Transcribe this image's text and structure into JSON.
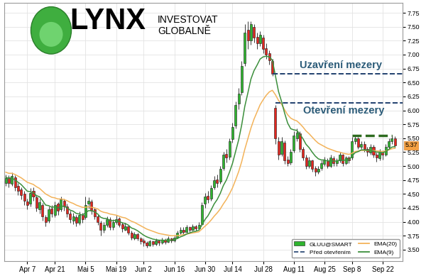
{
  "chart_data": {
    "type": "candlestick",
    "categories": [
      null,
      null,
      null,
      null,
      null,
      null,
      null,
      "Apr 7",
      null,
      null,
      null,
      null,
      null,
      null,
      null,
      null,
      "Apr 21",
      null,
      null,
      null,
      null,
      null,
      null,
      null,
      null,
      null,
      "Mai 5",
      null,
      null,
      null,
      null,
      null,
      null,
      null,
      null,
      null,
      "Mai 19",
      null,
      null,
      null,
      null,
      null,
      null,
      null,
      null,
      "Jun 2",
      null,
      null,
      null,
      null,
      null,
      null,
      null,
      null,
      null,
      "Jun 16",
      null,
      null,
      null,
      null,
      null,
      null,
      null,
      null,
      null,
      "Jun 30",
      null,
      null,
      null,
      null,
      null,
      null,
      null,
      null,
      "Jul 14",
      null,
      null,
      null,
      null,
      null,
      null,
      null,
      null,
      null,
      "Jul 28",
      null,
      null,
      null,
      null,
      null,
      null,
      null,
      null,
      null,
      "Aug 11",
      null,
      null,
      null,
      null,
      null,
      null,
      null,
      null,
      null,
      "Aug 25",
      null,
      null,
      null,
      null,
      null,
      null,
      null,
      null,
      "Sep 8",
      null,
      null,
      null,
      null,
      null,
      null,
      null,
      null,
      null,
      "Sep 22",
      null,
      null,
      null,
      null
    ],
    "candles": {
      "name": "GLUU@SMART",
      "open": [
        4.7,
        4.8,
        4.68,
        4.8,
        4.64,
        4.58,
        4.5,
        4.36,
        4.32,
        4.55,
        4.44,
        4.22,
        4.3,
        4.08,
        4.02,
        4.24,
        4.12,
        4.32,
        4.22,
        4.38,
        4.28,
        4.15,
        4.02,
        4.08,
        3.98,
        4.12,
        4.08,
        4.32,
        4.36,
        4.22,
        4.1,
        3.98,
        3.86,
        3.94,
        4.04,
        3.9,
        4.0,
        4.06,
        3.96,
        3.86,
        3.92,
        3.8,
        3.7,
        3.78,
        3.7,
        3.66,
        3.62,
        3.58,
        3.65,
        3.6,
        3.66,
        3.62,
        3.68,
        3.64,
        3.7,
        3.66,
        3.72,
        3.8,
        3.86,
        3.82,
        3.9,
        3.86,
        3.92,
        3.88,
        3.96,
        4.32,
        4.46,
        4.42,
        4.62,
        4.76,
        4.72,
        4.96,
        5.22,
        5.16,
        5.48,
        5.72,
        6.12,
        6.32,
        6.85,
        7.45,
        7.25,
        7.5,
        7.32,
        7.2,
        7.3,
        7.12,
        7.02,
        6.88,
        6.05,
        5.45,
        5.22,
        5.42,
        5.12,
        5.06,
        5.28,
        5.5,
        5.58,
        5.3,
        5.15,
        5.0,
        5.1,
        4.96,
        4.9,
        4.96,
        5.04,
        5.1,
        5.0,
        5.14,
        5.05,
        5.1,
        5.2,
        5.05,
        5.15,
        5.15,
        5.44,
        5.5,
        5.34,
        5.4,
        5.3,
        5.24,
        5.34,
        5.2,
        5.14,
        5.24,
        5.2,
        5.34,
        5.44,
        5.5
      ],
      "high": [
        4.85,
        4.84,
        4.88,
        4.83,
        4.7,
        4.62,
        4.55,
        4.42,
        4.6,
        4.62,
        4.48,
        4.42,
        4.34,
        4.12,
        4.28,
        4.3,
        4.36,
        4.35,
        4.45,
        4.42,
        4.32,
        4.2,
        4.16,
        4.12,
        4.18,
        4.16,
        4.45,
        4.44,
        4.4,
        4.25,
        4.14,
        4.02,
        4.0,
        4.1,
        4.08,
        4.05,
        4.12,
        4.08,
        3.99,
        3.98,
        3.95,
        3.84,
        3.82,
        3.8,
        3.73,
        3.7,
        3.65,
        3.68,
        3.67,
        3.7,
        3.68,
        3.72,
        3.7,
        3.74,
        3.72,
        3.76,
        3.84,
        3.9,
        3.9,
        3.94,
        3.92,
        3.96,
        3.95,
        3.99,
        4.35,
        4.52,
        4.55,
        4.66,
        4.82,
        4.85,
        5.0,
        5.26,
        5.3,
        5.5,
        5.78,
        6.16,
        6.4,
        6.88,
        7.55,
        7.6,
        7.6,
        7.55,
        7.4,
        7.42,
        7.35,
        7.2,
        7.08,
        6.92,
        6.1,
        5.52,
        5.52,
        5.46,
        5.18,
        5.3,
        5.62,
        5.68,
        5.62,
        5.34,
        5.2,
        5.16,
        5.12,
        5.0,
        5.0,
        5.1,
        5.16,
        5.14,
        5.2,
        5.18,
        5.14,
        5.25,
        5.22,
        5.18,
        5.18,
        5.52,
        5.56,
        5.52,
        5.45,
        5.44,
        5.34,
        5.4,
        5.38,
        5.24,
        5.3,
        5.28,
        5.4,
        5.5,
        5.56,
        5.54
      ],
      "low": [
        4.65,
        4.62,
        4.64,
        4.56,
        4.48,
        4.4,
        4.3,
        4.22,
        4.28,
        4.38,
        4.18,
        4.15,
        4.02,
        3.92,
        3.98,
        4.08,
        4.08,
        4.12,
        4.18,
        4.2,
        4.08,
        3.98,
        3.96,
        3.92,
        3.94,
        3.98,
        4.04,
        4.24,
        4.14,
        4.04,
        3.94,
        3.75,
        3.8,
        3.9,
        3.85,
        3.86,
        3.96,
        3.9,
        3.82,
        3.84,
        3.76,
        3.68,
        3.68,
        3.66,
        3.6,
        3.56,
        3.54,
        3.56,
        3.56,
        3.58,
        3.58,
        3.6,
        3.6,
        3.62,
        3.62,
        3.64,
        3.7,
        3.78,
        3.78,
        3.8,
        3.82,
        3.84,
        3.84,
        3.85,
        3.94,
        4.25,
        4.34,
        4.38,
        4.58,
        4.62,
        4.68,
        4.92,
        5.06,
        5.12,
        5.42,
        5.68,
        6.02,
        6.28,
        6.8,
        7.1,
        7.18,
        7.22,
        7.1,
        7.15,
        7.02,
        6.92,
        6.82,
        6.62,
        5.4,
        5.12,
        5.18,
        5.04,
        5.0,
        5.02,
        5.24,
        5.45,
        5.26,
        5.1,
        4.95,
        4.96,
        4.9,
        4.82,
        4.86,
        4.92,
        5.0,
        4.96,
        4.98,
        5.0,
        5.0,
        5.06,
        5.0,
        5.02,
        5.05,
        5.12,
        5.4,
        5.3,
        5.3,
        5.26,
        5.18,
        5.2,
        5.15,
        5.08,
        5.1,
        5.12,
        5.18,
        5.3,
        5.4,
        5.32
      ],
      "close": [
        4.78,
        4.7,
        4.82,
        4.62,
        4.55,
        4.48,
        4.38,
        4.3,
        4.52,
        4.45,
        4.25,
        4.35,
        4.1,
        4.0,
        4.22,
        4.15,
        4.3,
        4.2,
        4.4,
        4.28,
        4.15,
        4.05,
        4.1,
        3.98,
        4.12,
        4.05,
        4.3,
        4.38,
        4.2,
        4.1,
        4.0,
        3.85,
        3.95,
        4.05,
        3.9,
        4.0,
        4.05,
        3.95,
        3.88,
        3.92,
        3.8,
        3.72,
        3.78,
        3.7,
        3.65,
        3.62,
        3.58,
        3.65,
        3.6,
        3.66,
        3.62,
        3.68,
        3.64,
        3.7,
        3.66,
        3.72,
        3.8,
        3.85,
        3.82,
        3.9,
        3.86,
        3.92,
        3.88,
        3.95,
        4.3,
        4.45,
        4.4,
        4.6,
        4.75,
        4.7,
        4.95,
        5.2,
        5.15,
        5.45,
        5.7,
        6.1,
        6.3,
        6.8,
        7.4,
        7.25,
        7.55,
        7.3,
        7.2,
        7.35,
        7.1,
        7.0,
        6.9,
        6.65,
        5.5,
        5.2,
        5.45,
        5.1,
        5.05,
        5.25,
        5.55,
        5.6,
        5.3,
        5.15,
        5.0,
        5.1,
        4.95,
        4.9,
        4.95,
        5.05,
        5.1,
        5.0,
        5.15,
        5.05,
        5.1,
        5.2,
        5.05,
        5.15,
        5.1,
        5.45,
        5.5,
        5.35,
        5.4,
        5.3,
        5.25,
        5.35,
        5.2,
        5.15,
        5.25,
        5.2,
        5.35,
        5.45,
        5.5,
        5.37
      ]
    },
    "series": [
      {
        "name": "EMA(20)",
        "color": "#f3b35a",
        "values": [
          4.89,
          4.87,
          4.87,
          4.85,
          4.82,
          4.79,
          4.75,
          4.71,
          4.69,
          4.67,
          4.63,
          4.6,
          4.55,
          4.5,
          4.47,
          4.44,
          4.43,
          4.41,
          4.41,
          4.4,
          4.38,
          4.35,
          4.33,
          4.3,
          4.28,
          4.26,
          4.26,
          4.27,
          4.26,
          4.25,
          4.23,
          4.19,
          4.17,
          4.16,
          4.14,
          4.13,
          4.12,
          4.1,
          4.08,
          4.07,
          4.04,
          4.01,
          3.99,
          3.96,
          3.93,
          3.9,
          3.87,
          3.85,
          3.83,
          3.81,
          3.79,
          3.78,
          3.77,
          3.76,
          3.75,
          3.75,
          3.75,
          3.76,
          3.77,
          3.78,
          3.79,
          3.8,
          3.81,
          3.82,
          3.87,
          3.92,
          3.97,
          4.03,
          4.1,
          4.16,
          4.23,
          4.32,
          4.4,
          4.5,
          4.61,
          4.75,
          4.9,
          5.08,
          5.3,
          5.49,
          5.68,
          5.84,
          5.97,
          6.1,
          6.19,
          6.27,
          6.33,
          6.36,
          6.28,
          6.18,
          6.11,
          6.01,
          5.92,
          5.86,
          5.83,
          5.81,
          5.76,
          5.7,
          5.63,
          5.58,
          5.52,
          5.46,
          5.41,
          5.38,
          5.35,
          5.32,
          5.3,
          5.28,
          5.26,
          5.25,
          5.23,
          5.22,
          5.21,
          5.23,
          5.26,
          5.27,
          5.28,
          5.28,
          5.28,
          5.29,
          5.28,
          5.27,
          5.27,
          5.26,
          5.27,
          5.29,
          5.31,
          5.32
        ]
      },
      {
        "name": "EMA(9)",
        "color": "#3c8f3c",
        "values": [
          4.8,
          4.78,
          4.79,
          4.75,
          4.71,
          4.67,
          4.61,
          4.55,
          4.54,
          4.52,
          4.47,
          4.45,
          4.38,
          4.3,
          4.29,
          4.26,
          4.27,
          4.25,
          4.28,
          4.28,
          4.25,
          4.21,
          4.19,
          4.15,
          4.14,
          4.12,
          4.16,
          4.2,
          4.2,
          4.18,
          4.14,
          4.08,
          4.06,
          4.06,
          4.02,
          4.02,
          4.03,
          4.01,
          3.98,
          3.97,
          3.94,
          3.89,
          3.87,
          3.84,
          3.8,
          3.76,
          3.73,
          3.71,
          3.69,
          3.68,
          3.67,
          3.67,
          3.67,
          3.67,
          3.67,
          3.68,
          3.7,
          3.73,
          3.75,
          3.78,
          3.8,
          3.82,
          3.83,
          3.85,
          3.94,
          4.04,
          4.11,
          4.21,
          4.32,
          4.4,
          4.51,
          4.65,
          4.75,
          4.89,
          5.05,
          5.26,
          5.47,
          5.74,
          6.07,
          6.31,
          6.56,
          6.71,
          6.81,
          6.92,
          6.96,
          6.97,
          6.96,
          6.9,
          6.62,
          6.34,
          6.16,
          5.95,
          5.77,
          5.67,
          5.65,
          5.64,
          5.57,
          5.49,
          5.39,
          5.33,
          5.25,
          5.18,
          5.13,
          5.11,
          5.11,
          5.09,
          5.1,
          5.09,
          5.09,
          5.11,
          5.1,
          5.11,
          5.11,
          5.18,
          5.24,
          5.26,
          5.29,
          5.29,
          5.28,
          5.29,
          5.27,
          5.25,
          5.25,
          5.24,
          5.26,
          5.3,
          5.34,
          5.35
        ]
      }
    ],
    "premarket": {
      "name": "Před otevřením",
      "line_style": "dashed",
      "color": "#1f3f6e"
    },
    "annotations": [
      {
        "text": "Uzavření mezery",
        "y": 6.66,
        "from": 87
      },
      {
        "text": "Otevření mezery",
        "y": 6.13,
        "from": 88
      }
    ],
    "resistance": {
      "y": 5.55,
      "from": 113,
      "to": 126,
      "color": "#2e6b1f"
    },
    "last_price": {
      "value": 5.37,
      "label": "5.37"
    },
    "logo": {
      "name": "LYNX",
      "tagline": [
        "INVESTOVAT",
        "GLOBALNĚ"
      ]
    },
    "xlim": [
      -0.5,
      129.5
    ],
    "ylim": [
      3.3,
      7.93
    ],
    "yticks": [
      {
        "value": 3.5,
        "label": "3.50"
      },
      3.75,
      {
        "value": 4,
        "label": "4.00"
      },
      4.25,
      {
        "value": 4.5,
        "label": "4.50"
      },
      4.75,
      {
        "value": 5,
        "label": "5.00"
      },
      5.25,
      {
        "value": 5.5,
        "label": "5.50"
      },
      5.75,
      {
        "value": 6,
        "label": "6.00"
      },
      6.25,
      {
        "value": 6.5,
        "label": "6.50"
      },
      6.75,
      {
        "value": 7,
        "label": "7.00"
      },
      7.25,
      {
        "value": 7.5,
        "label": "7.50"
      },
      7.75
    ],
    "grid": true,
    "legend": "lower right"
  }
}
